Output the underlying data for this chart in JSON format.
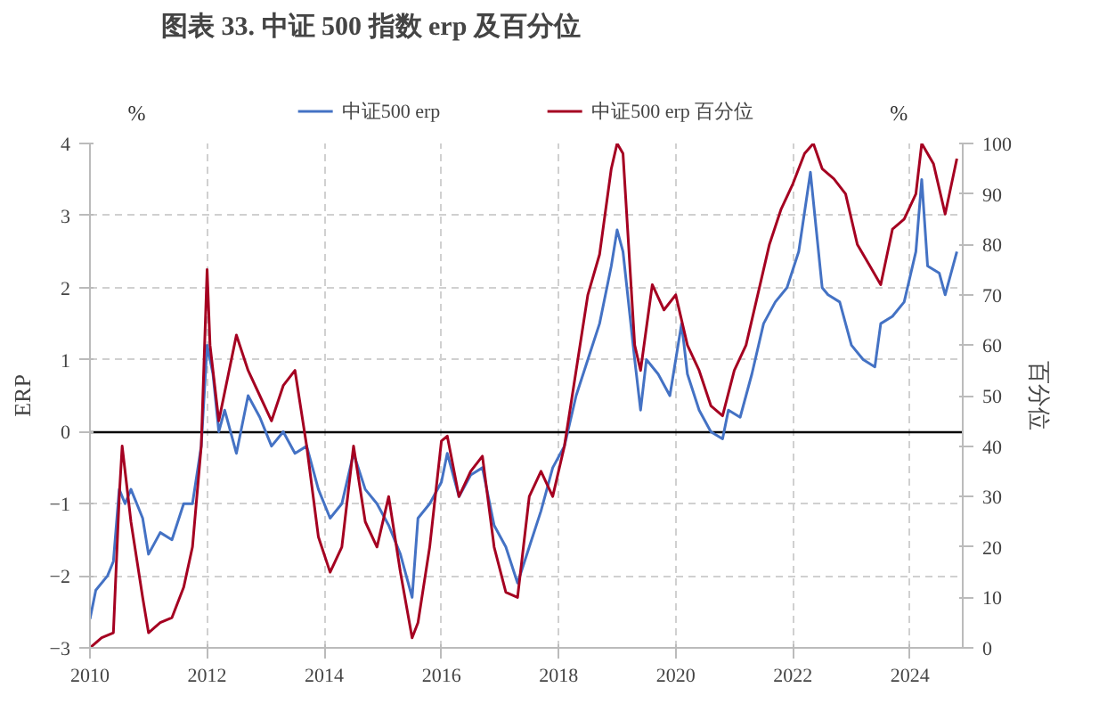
{
  "chart_data": {
    "type": "line",
    "title": "图表 33. 中证 500 指数 erp 及百分位",
    "ylabel": "ERP",
    "y2label": "百分位",
    "annotations": [
      "%",
      "%"
    ],
    "xlim": [
      2010,
      2024.9
    ],
    "xticks": [
      2010,
      2012,
      2014,
      2016,
      2018,
      2020,
      2022,
      2024
    ],
    "ylim": [
      -3,
      4
    ],
    "yticks": [
      -3,
      -2,
      -1,
      0,
      1,
      2,
      3,
      4
    ],
    "y2lim": [
      0,
      100
    ],
    "y2ticks": [
      0,
      10,
      20,
      30,
      40,
      50,
      60,
      70,
      80,
      90,
      100
    ],
    "grid": true,
    "legend": "top",
    "line_style": "solid",
    "marker": "none",
    "ref_lines": [
      {
        "axis": "y",
        "value": 0,
        "color": "#000000"
      }
    ],
    "series": [
      {
        "name": "中证500 erp",
        "color": "#4472c4",
        "x": [
          2010.0,
          2010.1,
          2010.3,
          2010.4,
          2010.5,
          2010.6,
          2010.7,
          2010.9,
          2011.0,
          2011.2,
          2011.4,
          2011.6,
          2011.75,
          2011.9,
          2012.0,
          2012.1,
          2012.2,
          2012.3,
          2012.5,
          2012.7,
          2012.9,
          2013.1,
          2013.3,
          2013.5,
          2013.7,
          2013.9,
          2014.1,
          2014.3,
          2014.5,
          2014.7,
          2014.9,
          2015.1,
          2015.3,
          2015.5,
          2015.6,
          2015.8,
          2016.0,
          2016.1,
          2016.3,
          2016.5,
          2016.7,
          2016.9,
          2017.1,
          2017.3,
          2017.5,
          2017.7,
          2017.9,
          2018.1,
          2018.3,
          2018.5,
          2018.7,
          2018.9,
          2019.0,
          2019.1,
          2019.3,
          2019.4,
          2019.5,
          2019.7,
          2019.9,
          2020.1,
          2020.2,
          2020.4,
          2020.6,
          2020.8,
          2020.9,
          2021.1,
          2021.3,
          2021.5,
          2021.7,
          2021.9,
          2022.1,
          2022.3,
          2022.5,
          2022.6,
          2022.8,
          2023.0,
          2023.2,
          2023.4,
          2023.5,
          2023.7,
          2023.9,
          2024.1,
          2024.2,
          2024.3,
          2024.5,
          2024.6,
          2024.8
        ],
        "values": [
          -2.6,
          -2.2,
          -2.0,
          -1.8,
          -0.8,
          -1.0,
          -0.8,
          -1.2,
          -1.7,
          -1.4,
          -1.5,
          -1.0,
          -1.0,
          -0.2,
          1.2,
          0.8,
          0.0,
          0.3,
          -0.3,
          0.5,
          0.2,
          -0.2,
          0.0,
          -0.3,
          -0.2,
          -0.8,
          -1.2,
          -1.0,
          -0.3,
          -0.8,
          -1.0,
          -1.3,
          -1.7,
          -2.3,
          -1.2,
          -1.0,
          -0.7,
          -0.3,
          -0.9,
          -0.6,
          -0.5,
          -1.3,
          -1.6,
          -2.1,
          -1.6,
          -1.1,
          -0.5,
          -0.2,
          0.5,
          1.0,
          1.5,
          2.3,
          2.8,
          2.5,
          1.0,
          0.3,
          1.0,
          0.8,
          0.5,
          1.5,
          0.8,
          0.3,
          0.0,
          -0.1,
          0.3,
          0.2,
          0.8,
          1.5,
          1.8,
          2.0,
          2.5,
          3.6,
          2.0,
          1.9,
          1.8,
          1.2,
          1.0,
          0.9,
          1.5,
          1.6,
          1.8,
          2.5,
          3.5,
          2.3,
          2.2,
          1.9,
          2.5
        ]
      },
      {
        "name": "中证500 erp 百分位",
        "color": "#a50021",
        "axis": "y2",
        "x": [
          2010.0,
          2010.2,
          2010.4,
          2010.5,
          2010.55,
          2010.7,
          2010.9,
          2011.0,
          2011.2,
          2011.4,
          2011.6,
          2011.75,
          2011.9,
          2012.0,
          2012.05,
          2012.2,
          2012.5,
          2012.7,
          2012.9,
          2013.1,
          2013.3,
          2013.5,
          2013.7,
          2013.9,
          2014.1,
          2014.3,
          2014.5,
          2014.7,
          2014.9,
          2015.1,
          2015.3,
          2015.5,
          2015.6,
          2015.8,
          2016.0,
          2016.1,
          2016.3,
          2016.5,
          2016.7,
          2016.9,
          2017.1,
          2017.3,
          2017.5,
          2017.7,
          2017.9,
          2018.1,
          2018.3,
          2018.5,
          2018.7,
          2018.9,
          2019.0,
          2019.1,
          2019.3,
          2019.4,
          2019.6,
          2019.8,
          2020.0,
          2020.2,
          2020.4,
          2020.6,
          2020.8,
          2021.0,
          2021.2,
          2021.4,
          2021.6,
          2021.8,
          2022.0,
          2022.2,
          2022.35,
          2022.5,
          2022.7,
          2022.9,
          2023.1,
          2023.3,
          2023.5,
          2023.7,
          2023.9,
          2024.1,
          2024.2,
          2024.4,
          2024.6,
          2024.8
        ],
        "values": [
          0,
          2,
          3,
          30,
          40,
          25,
          10,
          3,
          5,
          6,
          12,
          20,
          40,
          75,
          60,
          45,
          62,
          55,
          50,
          45,
          52,
          55,
          40,
          22,
          15,
          20,
          40,
          25,
          20,
          30,
          15,
          2,
          5,
          20,
          41,
          42,
          30,
          35,
          38,
          20,
          11,
          10,
          30,
          35,
          30,
          40,
          55,
          70,
          78,
          95,
          100,
          98,
          60,
          55,
          72,
          67,
          70,
          60,
          55,
          48,
          46,
          55,
          60,
          70,
          80,
          87,
          92,
          98,
          100,
          95,
          93,
          90,
          80,
          76,
          72,
          83,
          85,
          90,
          100,
          96,
          86,
          97
        ]
      }
    ]
  }
}
